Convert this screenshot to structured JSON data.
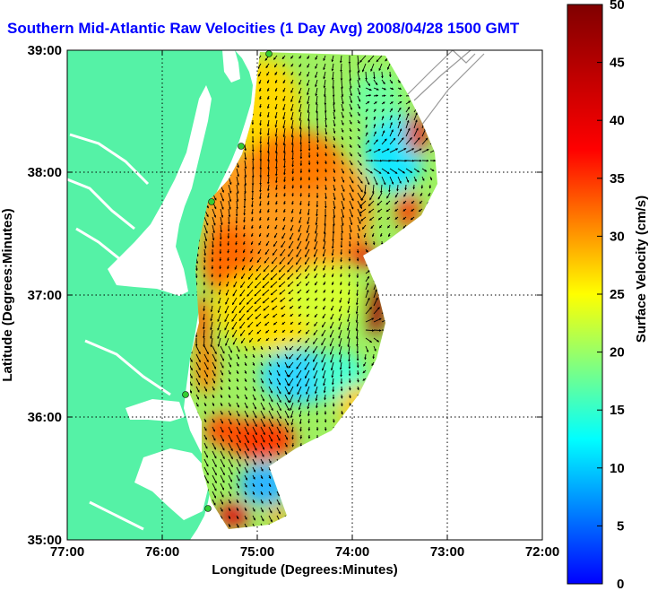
{
  "title": "Southern Mid-Atlantic Raw Velocities (1 Day Avg) 2008/04/28 1500 GMT",
  "xaxis": {
    "label": "Longitude (Degrees:Minutes)",
    "ticks": [
      "77:00",
      "76:00",
      "75:00",
      "74:00",
      "73:00",
      "72:00"
    ],
    "range": [
      -77,
      -72
    ]
  },
  "yaxis": {
    "label": "Latitude (Degrees:Minutes)",
    "ticks": [
      "39:00",
      "38:00",
      "37:00",
      "36:00",
      "35:00"
    ],
    "range": [
      35,
      39
    ]
  },
  "colorbar": {
    "label": "Surface Velocity (cm/s)",
    "ticks": [
      "50",
      "45",
      "40",
      "35",
      "30",
      "25",
      "20",
      "15",
      "10",
      "5",
      "0"
    ],
    "range": [
      0,
      50
    ],
    "colormap": "jet"
  },
  "colors": {
    "land": "#55f2a6",
    "water": "#ffffff",
    "title": "#0000ff",
    "grid": "#000000",
    "vector": "#000000",
    "bathymetry": "#9a9a9a",
    "station": "#33cc33"
  },
  "grid": true,
  "stations": 5
}
